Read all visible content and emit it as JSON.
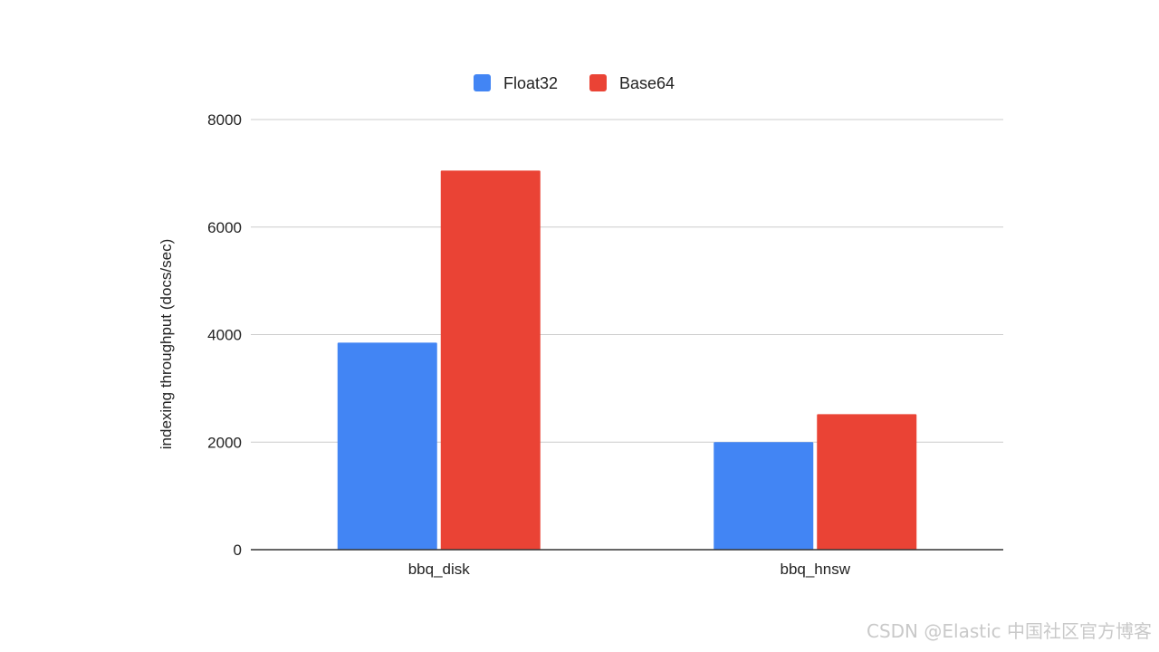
{
  "chart_data": {
    "type": "bar",
    "title": "",
    "xlabel": "",
    "ylabel": "indexing throughput (docs/sec)",
    "categories": [
      "bbq_disk",
      "bbq_hnsw"
    ],
    "series": [
      {
        "name": "Float32",
        "color": "#4285F4",
        "values": [
          3850,
          2000
        ]
      },
      {
        "name": "Base64",
        "color": "#EA4335",
        "values": [
          7050,
          2520
        ]
      }
    ],
    "ylim": [
      0,
      8000
    ],
    "yticks": [
      0,
      2000,
      4000,
      6000,
      8000
    ],
    "grid": true,
    "legend_position": "top-center"
  },
  "watermark": "CSDN @Elastic 中国社区官方博客"
}
